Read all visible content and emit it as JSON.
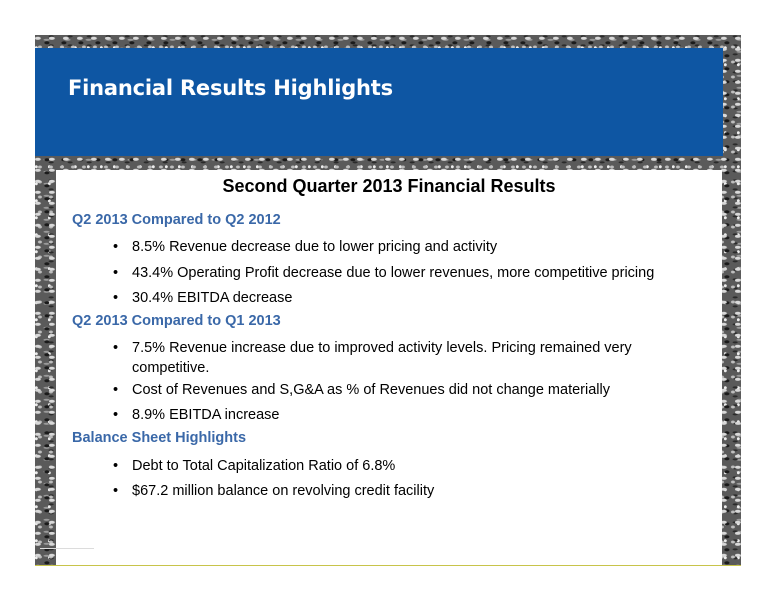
{
  "slide": {
    "title": "Financial Results Highlights",
    "subtitle": "Second Quarter 2013 Financial Results"
  },
  "sections": [
    {
      "heading": "Q2 2013 Compared to Q2 2012",
      "bullets": [
        "8.5% Revenue decrease due to lower pricing and activity",
        "43.4% Operating Profit decrease due to lower revenues, more competitive pricing",
        "30.4% EBITDA decrease"
      ]
    },
    {
      "heading": "Q2 2013 Compared to Q1 2013",
      "bullets": [
        "7.5% Revenue increase due to improved activity levels.  Pricing remained very competitive.",
        "Cost of Revenues and S,G&A as % of Revenues did not change materially",
        "8.9% EBITDA increase"
      ]
    },
    {
      "heading": "Balance Sheet Highlights",
      "bullets": [
        "Debt to Total Capitalization Ratio of 6.8%",
        "$67.2 million balance on revolving credit facility"
      ]
    }
  ],
  "bullet_symbol": "•",
  "colors": {
    "header_band": "#0e56a3",
    "section_heading": "#3a68a8",
    "footer_line": "#c8c44a"
  }
}
